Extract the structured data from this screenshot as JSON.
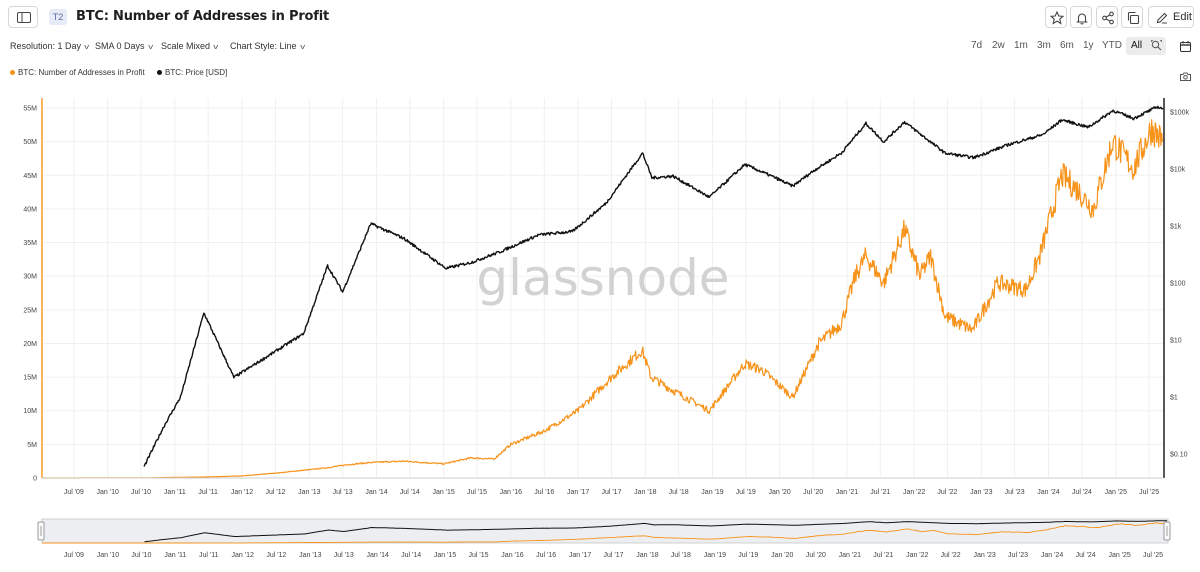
{
  "header": {
    "tier_badge": "T2",
    "title": "BTC: Number of Addresses in Profit",
    "edit_label": "Edit"
  },
  "settings": {
    "resolution": "Resolution: 1 Day",
    "sma": "SMA 0 Days",
    "scale": "Scale Mixed",
    "chart_style": "Chart Style: Line"
  },
  "ranges": [
    "7d",
    "2w",
    "1m",
    "3m",
    "6m",
    "1y",
    "YTD",
    "All"
  ],
  "active_range": "All",
  "watermark": "glassnode",
  "colors": {
    "addresses": "#f7931a",
    "price": "#111111",
    "grid": "#f0f0f0"
  },
  "chart_data": {
    "type": "line",
    "title": "BTC: Number of Addresses in Profit",
    "legend_position": "top-left",
    "grid": true,
    "x_ticks": [
      "Jul '09",
      "Jan '10",
      "Jul '10",
      "Jan '11",
      "Jul '11",
      "Jan '12",
      "Jul '12",
      "Jan '13",
      "Jul '13",
      "Jan '14",
      "Jul '14",
      "Jan '15",
      "Jul '15",
      "Jan '16",
      "Jul '16",
      "Jan '17",
      "Jul '17",
      "Jan '18",
      "Jul '18",
      "Jan '19",
      "Jul '19",
      "Jan '20",
      "Jul '20",
      "Jan '21",
      "Jul '21",
      "Jan '22",
      "Jul '22",
      "Jan '23",
      "Jul '23",
      "Jan '24",
      "Jul '24",
      "Jan '25",
      "Jul '25"
    ],
    "y_left": {
      "scale": "linear",
      "min": 0,
      "max": 55000000,
      "ticks": [
        "0",
        "5M",
        "10M",
        "15M",
        "20M",
        "25M",
        "30M",
        "35M",
        "40M",
        "45M",
        "50M",
        "55M"
      ]
    },
    "y_right": {
      "scale": "log",
      "min": 0.1,
      "max": 100000,
      "ticks": [
        "$0.10",
        "$1",
        "$10",
        "$100",
        "$1k",
        "$10k",
        "$100k"
      ]
    },
    "series": [
      {
        "name": "BTC: Number of Addresses in Profit",
        "axis": "left",
        "points": [
          [
            "2009-01-09",
            0
          ],
          [
            "2010-07-18",
            20000
          ],
          [
            "2011-06-08",
            150000
          ],
          [
            "2012-01-01",
            300000
          ],
          [
            "2012-08-01",
            800000
          ],
          [
            "2013-04-01",
            1500000
          ],
          [
            "2013-08-01",
            2000000
          ],
          [
            "2013-12-01",
            2300000
          ],
          [
            "2014-06-01",
            2500000
          ],
          [
            "2015-01-01",
            2100000
          ],
          [
            "2015-06-01",
            3000000
          ],
          [
            "2015-10-01",
            2800000
          ],
          [
            "2016-01-01",
            5000000
          ],
          [
            "2016-07-01",
            7000000
          ],
          [
            "2017-01-01",
            10000000
          ],
          [
            "2017-07-01",
            15000000
          ],
          [
            "2017-12-15",
            19000000
          ],
          [
            "2018-02-01",
            15000000
          ],
          [
            "2018-06-01",
            13000000
          ],
          [
            "2018-12-15",
            10000000
          ],
          [
            "2019-06-25",
            17000000
          ],
          [
            "2019-10-01",
            16000000
          ],
          [
            "2020-03-12",
            12000000
          ],
          [
            "2020-08-01",
            20000000
          ],
          [
            "2020-12-01",
            23000000
          ],
          [
            "2021-02-15",
            30000000
          ],
          [
            "2021-04-14",
            33000000
          ],
          [
            "2021-07-20",
            29000000
          ],
          [
            "2021-11-10",
            37000000
          ],
          [
            "2022-02-01",
            30000000
          ],
          [
            "2022-04-01",
            33000000
          ],
          [
            "2022-06-18",
            24000000
          ],
          [
            "2022-11-15",
            22000000
          ],
          [
            "2023-04-01",
            29000000
          ],
          [
            "2023-09-01",
            28000000
          ],
          [
            "2023-11-15",
            33000000
          ],
          [
            "2024-03-14",
            45000000
          ],
          [
            "2024-06-01",
            43000000
          ],
          [
            "2024-09-01",
            40000000
          ],
          [
            "2024-12-15",
            50000000
          ],
          [
            "2025-04-08",
            46000000
          ],
          [
            "2025-07-15",
            52000000
          ],
          [
            "2025-09-15",
            50000000
          ]
        ]
      },
      {
        "name": "BTC: Price [USD]",
        "axis": "right",
        "points": [
          [
            "2010-07-18",
            0.06
          ],
          [
            "2010-11-01",
            0.3
          ],
          [
            "2011-02-01",
            1
          ],
          [
            "2011-06-08",
            30
          ],
          [
            "2011-11-18",
            2.2
          ],
          [
            "2012-06-01",
            5.5
          ],
          [
            "2012-12-01",
            13
          ],
          [
            "2013-04-10",
            200
          ],
          [
            "2013-07-01",
            70
          ],
          [
            "2013-12-01",
            1100
          ],
          [
            "2014-06-01",
            600
          ],
          [
            "2015-01-14",
            180
          ],
          [
            "2015-06-01",
            230
          ],
          [
            "2015-11-01",
            350
          ],
          [
            "2016-06-01",
            700
          ],
          [
            "2016-12-01",
            800
          ],
          [
            "2017-06-01",
            2500
          ],
          [
            "2017-12-17",
            19000
          ],
          [
            "2018-02-06",
            7000
          ],
          [
            "2018-06-01",
            7500
          ],
          [
            "2018-12-15",
            3200
          ],
          [
            "2019-06-26",
            12000
          ],
          [
            "2019-12-01",
            7200
          ],
          [
            "2020-03-12",
            5000
          ],
          [
            "2020-07-01",
            9200
          ],
          [
            "2020-12-01",
            19000
          ],
          [
            "2021-04-14",
            63000
          ],
          [
            "2021-07-20",
            30000
          ],
          [
            "2021-11-10",
            67000
          ],
          [
            "2022-06-18",
            19000
          ],
          [
            "2022-11-21",
            15800
          ],
          [
            "2023-06-01",
            27000
          ],
          [
            "2023-12-01",
            40000
          ],
          [
            "2024-03-14",
            73000
          ],
          [
            "2024-08-05",
            54000
          ],
          [
            "2024-12-17",
            106000
          ],
          [
            "2025-04-08",
            77000
          ],
          [
            "2025-08-14",
            123000
          ],
          [
            "2025-09-15",
            115000
          ]
        ]
      }
    ]
  }
}
